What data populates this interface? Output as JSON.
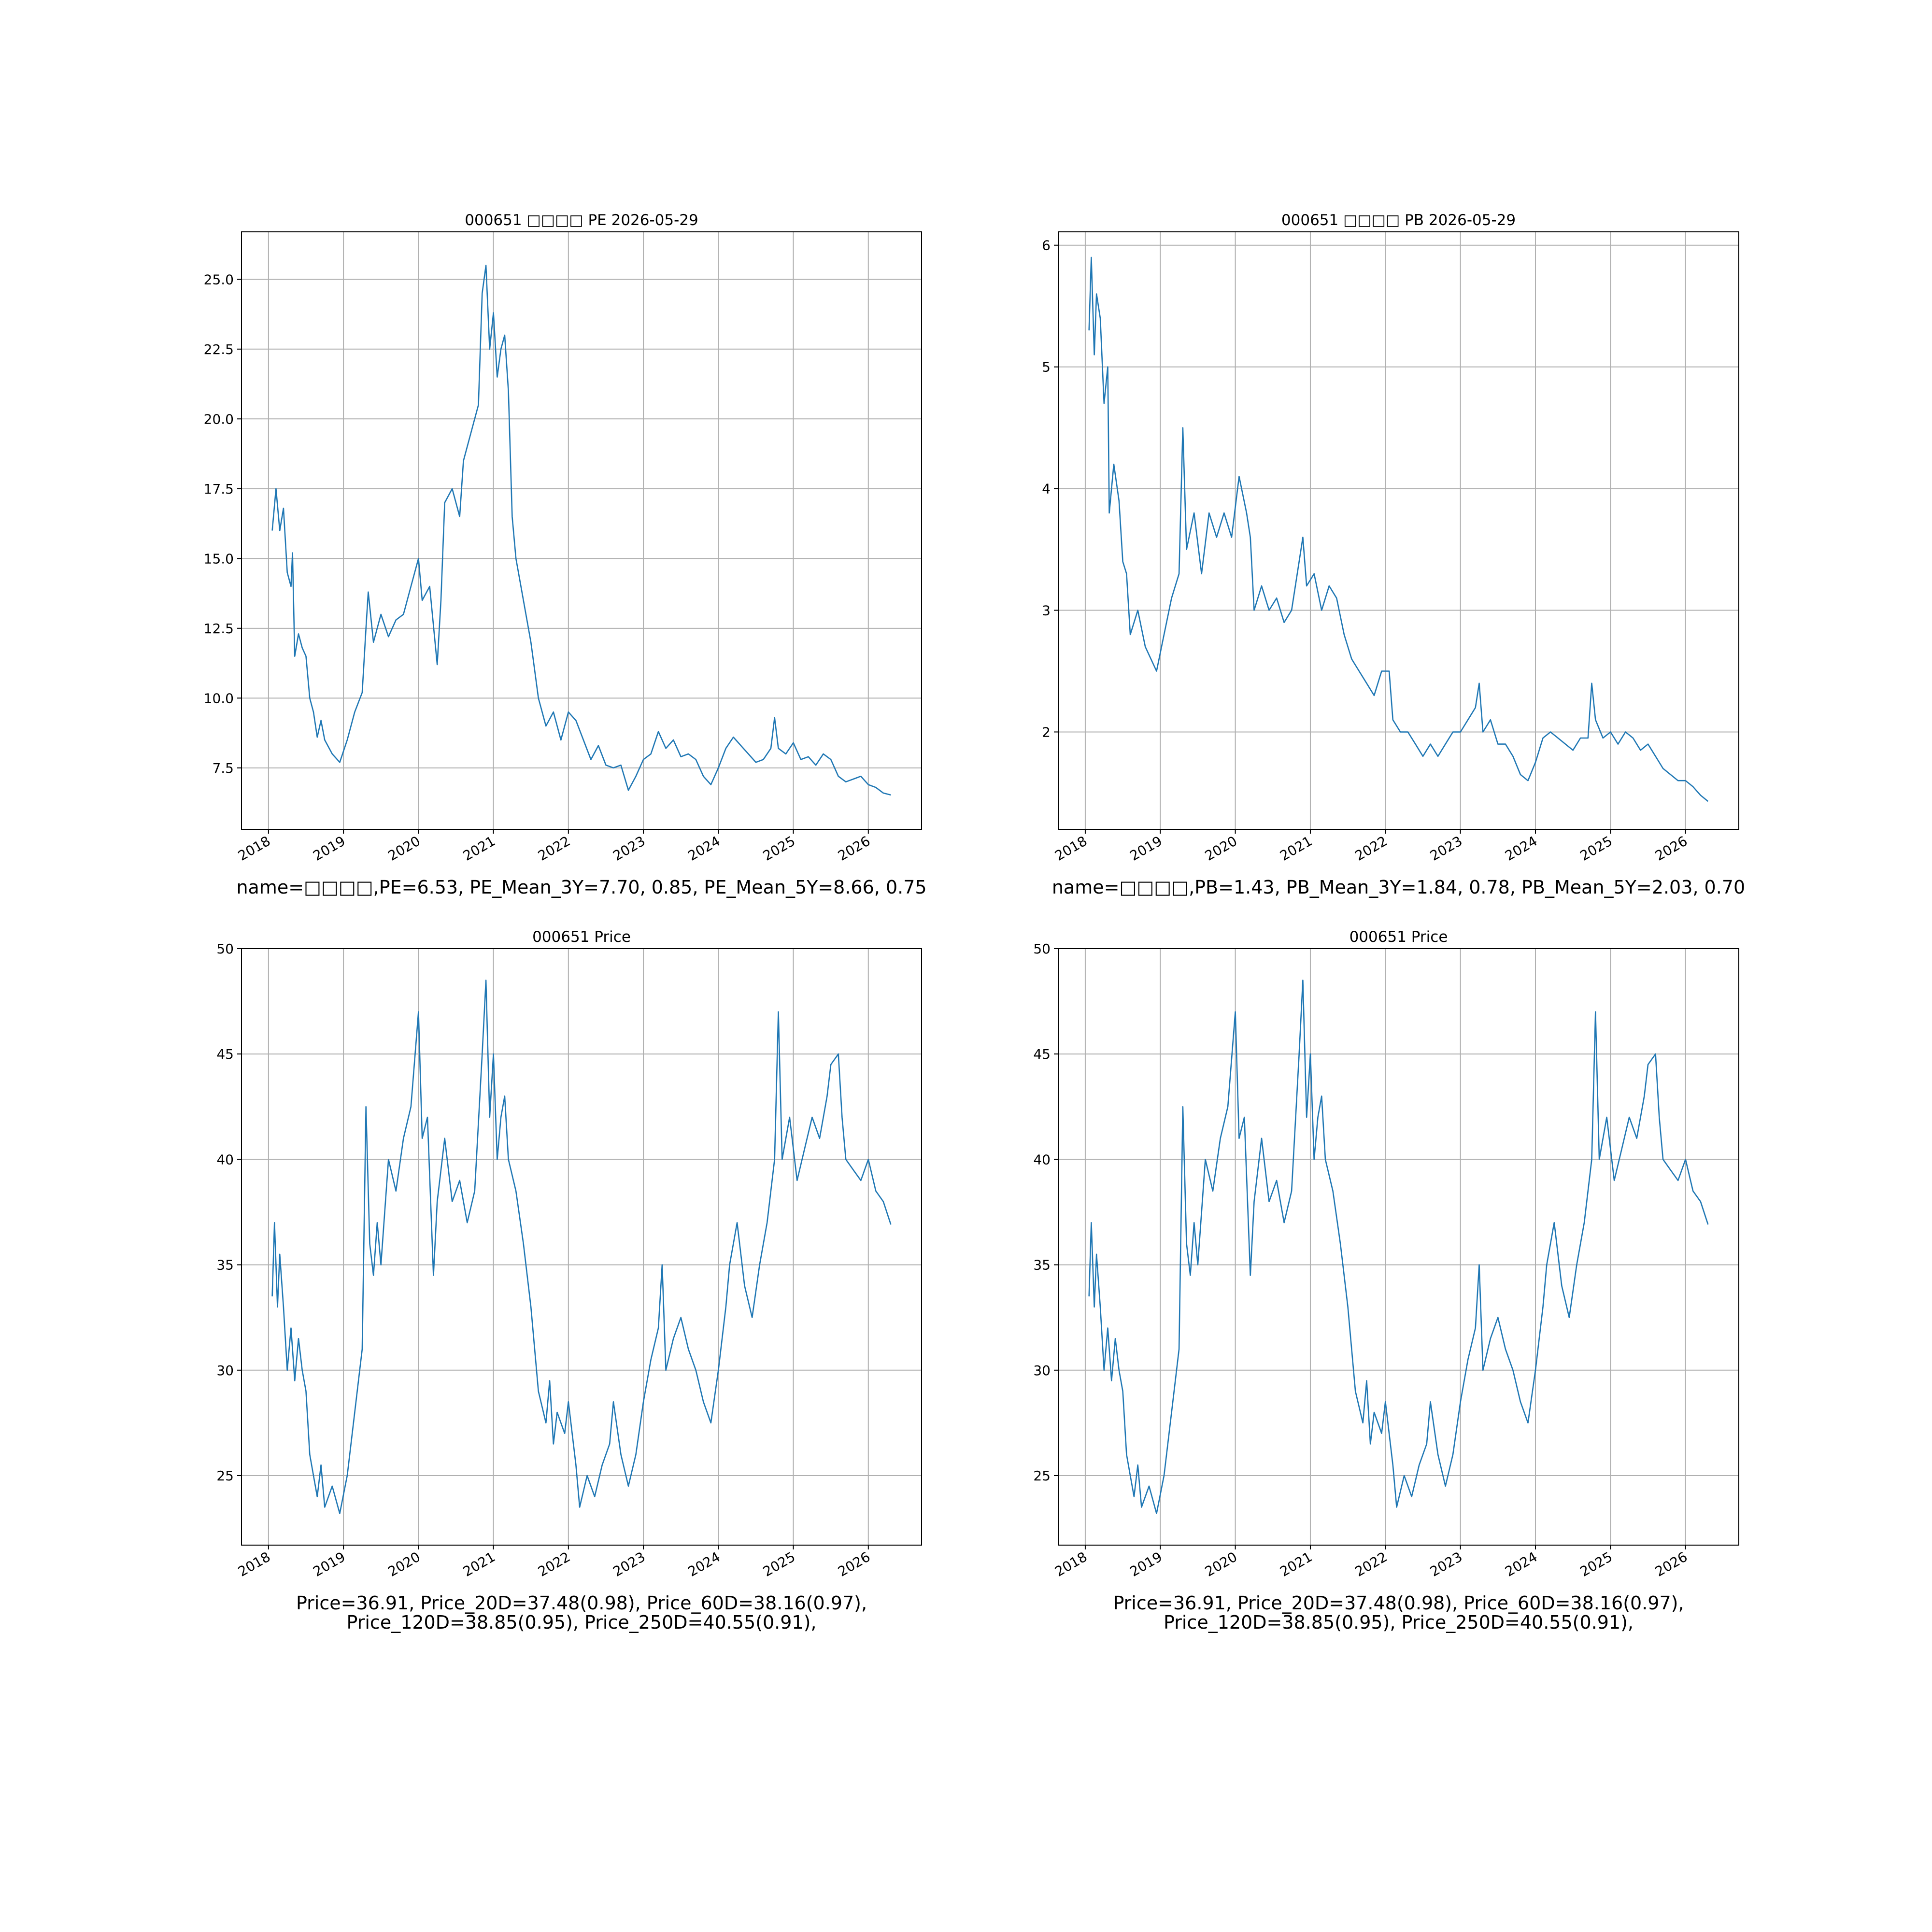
{
  "chart_data": [
    {
      "type": "line",
      "title": "000651 □□□□ PE 2026-05-29",
      "color": "#1f77b4",
      "grid": true,
      "xlim": [
        2017.64,
        2026.71
      ],
      "xticks": [
        2018,
        2019,
        2020,
        2021,
        2022,
        2023,
        2024,
        2025,
        2026
      ],
      "ylim": [
        5.3,
        26.7
      ],
      "yticks": [
        7.5,
        {
          "value": 10,
          "label": "10.0"
        },
        12.5,
        {
          "value": 15,
          "label": "15.0"
        },
        17.5,
        {
          "value": 20,
          "label": "20.0"
        },
        22.5,
        {
          "value": 25,
          "label": "25.0"
        }
      ],
      "x": [
        2018.05,
        2018.1,
        2018.15,
        2018.2,
        2018.25,
        2018.3,
        2018.32,
        2018.35,
        2018.4,
        2018.45,
        2018.5,
        2018.55,
        2018.6,
        2018.65,
        2018.7,
        2018.75,
        2018.85,
        2018.95,
        2019.05,
        2019.15,
        2019.25,
        2019.3,
        2019.33,
        2019.4,
        2019.5,
        2019.6,
        2019.7,
        2019.8,
        2019.9,
        2020.0,
        2020.05,
        2020.15,
        2020.25,
        2020.3,
        2020.35,
        2020.45,
        2020.55,
        2020.6,
        2020.7,
        2020.8,
        2020.85,
        2020.9,
        2020.95,
        2021.0,
        2021.05,
        2021.1,
        2021.15,
        2021.2,
        2021.25,
        2021.3,
        2021.4,
        2021.5,
        2021.6,
        2021.7,
        2021.8,
        2021.9,
        2022.0,
        2022.1,
        2022.2,
        2022.3,
        2022.4,
        2022.5,
        2022.6,
        2022.7,
        2022.8,
        2022.9,
        2023.0,
        2023.1,
        2023.2,
        2023.3,
        2023.4,
        2023.5,
        2023.6,
        2023.7,
        2023.8,
        2023.9,
        2024.0,
        2024.1,
        2024.2,
        2024.3,
        2024.4,
        2024.5,
        2024.6,
        2024.7,
        2024.75,
        2024.8,
        2024.9,
        2025.0,
        2025.1,
        2025.2,
        2025.3,
        2025.4,
        2025.5,
        2025.6,
        2025.7,
        2025.8,
        2025.9,
        2026.0,
        2026.1,
        2026.2,
        2026.3
      ],
      "values": [
        16,
        17.5,
        16,
        16.8,
        14.5,
        14,
        15.2,
        11.5,
        12.3,
        11.8,
        11.5,
        10,
        9.5,
        8.6,
        9.2,
        8.5,
        8,
        7.7,
        8.5,
        9.5,
        10.2,
        12.5,
        13.8,
        12,
        13,
        12.2,
        12.8,
        13,
        14,
        15,
        13.5,
        14,
        11.2,
        13.5,
        17,
        17.5,
        16.5,
        18.5,
        19.5,
        20.5,
        24.5,
        25.5,
        22.5,
        23.8,
        21.5,
        22.5,
        23,
        21,
        16.5,
        15,
        13.5,
        12,
        10,
        9,
        9.5,
        8.5,
        9.5,
        9.2,
        8.5,
        7.8,
        8.3,
        7.6,
        7.5,
        7.6,
        6.7,
        7.2,
        7.8,
        8.0,
        8.8,
        8.2,
        8.5,
        7.9,
        8.0,
        7.8,
        7.2,
        6.9,
        7.5,
        8.2,
        8.6,
        8.3,
        8.0,
        7.7,
        7.8,
        8.2,
        9.3,
        8.2,
        8.0,
        8.4,
        7.8,
        7.9,
        7.6,
        8.0,
        7.8,
        7.2,
        7.0,
        7.1,
        7.2,
        6.9,
        6.8,
        6.6,
        6.53
      ],
      "annotation": [
        "name=□□□□,PE=6.53, PE_Mean_3Y=7.70, 0.85, PE_Mean_5Y=8.66, 0.75"
      ]
    },
    {
      "type": "line",
      "title": "000651 □□□□ PB 2026-05-29",
      "color": "#1f77b4",
      "grid": true,
      "xlim": [
        2017.64,
        2026.71
      ],
      "xticks": [
        2018,
        2019,
        2020,
        2021,
        2022,
        2023,
        2024,
        2025,
        2026
      ],
      "ylim": [
        1.2,
        6.11
      ],
      "yticks": [
        2,
        3,
        4,
        5,
        6
      ],
      "x": [
        2018.05,
        2018.08,
        2018.12,
        2018.15,
        2018.2,
        2018.25,
        2018.3,
        2018.32,
        2018.38,
        2018.45,
        2018.5,
        2018.55,
        2018.6,
        2018.7,
        2018.8,
        2018.95,
        2019.05,
        2019.15,
        2019.25,
        2019.3,
        2019.35,
        2019.45,
        2019.55,
        2019.65,
        2019.75,
        2019.85,
        2019.95,
        2020.05,
        2020.15,
        2020.2,
        2020.25,
        2020.35,
        2020.45,
        2020.55,
        2020.65,
        2020.75,
        2020.85,
        2020.9,
        2020.95,
        2021.05,
        2021.15,
        2021.25,
        2021.35,
        2021.45,
        2021.55,
        2021.65,
        2021.75,
        2021.85,
        2021.95,
        2022.05,
        2022.1,
        2022.2,
        2022.3,
        2022.4,
        2022.5,
        2022.6,
        2022.7,
        2022.8,
        2022.9,
        2023.0,
        2023.1,
        2023.2,
        2023.25,
        2023.3,
        2023.4,
        2023.5,
        2023.6,
        2023.7,
        2023.8,
        2023.9,
        2024.0,
        2024.1,
        2024.2,
        2024.3,
        2024.4,
        2024.5,
        2024.6,
        2024.7,
        2024.75,
        2024.8,
        2024.9,
        2025.0,
        2025.1,
        2025.2,
        2025.3,
        2025.4,
        2025.5,
        2025.6,
        2025.7,
        2025.8,
        2025.9,
        2026.0,
        2026.1,
        2026.2,
        2026.3
      ],
      "values": [
        5.3,
        5.9,
        5.1,
        5.6,
        5.4,
        4.7,
        5.0,
        3.8,
        4.2,
        3.9,
        3.4,
        3.3,
        2.8,
        3.0,
        2.7,
        2.5,
        2.8,
        3.1,
        3.3,
        4.5,
        3.5,
        3.8,
        3.3,
        3.8,
        3.6,
        3.8,
        3.6,
        4.1,
        3.8,
        3.6,
        3.0,
        3.2,
        3.0,
        3.1,
        2.9,
        3.0,
        3.4,
        3.6,
        3.2,
        3.3,
        3.0,
        3.2,
        3.1,
        2.8,
        2.6,
        2.5,
        2.4,
        2.3,
        2.5,
        2.5,
        2.1,
        2.0,
        2.0,
        1.9,
        1.8,
        1.9,
        1.8,
        1.9,
        2.0,
        2.0,
        2.1,
        2.2,
        2.4,
        2.0,
        2.1,
        1.9,
        1.9,
        1.8,
        1.65,
        1.6,
        1.75,
        1.95,
        2.0,
        1.95,
        1.9,
        1.85,
        1.95,
        1.95,
        2.4,
        2.1,
        1.95,
        2.0,
        1.9,
        2.0,
        1.95,
        1.85,
        1.9,
        1.8,
        1.7,
        1.65,
        1.6,
        1.6,
        1.55,
        1.48,
        1.43
      ],
      "annotation": [
        "name=□□□□,PB=1.43, PB_Mean_3Y=1.84, 0.78, PB_Mean_5Y=2.03, 0.70"
      ]
    },
    {
      "type": "line",
      "title": "000651 Price",
      "color": "#1f77b4",
      "grid": true,
      "xlim": [
        2017.64,
        2026.71
      ],
      "xticks": [
        2018,
        2019,
        2020,
        2021,
        2022,
        2023,
        2024,
        2025,
        2026
      ],
      "ylim": [
        21.7,
        50
      ],
      "yticks": [
        25,
        30,
        35,
        40,
        45,
        50
      ],
      "x": [
        2018.05,
        2018.08,
        2018.12,
        2018.15,
        2018.2,
        2018.25,
        2018.3,
        2018.35,
        2018.4,
        2018.45,
        2018.5,
        2018.55,
        2018.6,
        2018.65,
        2018.7,
        2018.75,
        2018.85,
        2018.95,
        2019.05,
        2019.15,
        2019.25,
        2019.3,
        2019.35,
        2019.4,
        2019.45,
        2019.5,
        2019.6,
        2019.7,
        2019.8,
        2019.9,
        2020.0,
        2020.05,
        2020.12,
        2020.2,
        2020.25,
        2020.35,
        2020.45,
        2020.55,
        2020.65,
        2020.75,
        2020.85,
        2020.9,
        2020.95,
        2021.0,
        2021.05,
        2021.1,
        2021.15,
        2021.2,
        2021.3,
        2021.4,
        2021.5,
        2021.6,
        2021.7,
        2021.75,
        2021.8,
        2021.85,
        2021.95,
        2022.0,
        2022.1,
        2022.15,
        2022.25,
        2022.35,
        2022.45,
        2022.55,
        2022.6,
        2022.7,
        2022.8,
        2022.9,
        2023.0,
        2023.1,
        2023.2,
        2023.25,
        2023.3,
        2023.4,
        2023.5,
        2023.6,
        2023.7,
        2023.8,
        2023.9,
        2024.0,
        2024.1,
        2024.15,
        2024.25,
        2024.35,
        2024.45,
        2024.55,
        2024.65,
        2024.75,
        2024.8,
        2024.85,
        2024.95,
        2025.05,
        2025.15,
        2025.25,
        2025.35,
        2025.45,
        2025.5,
        2025.6,
        2025.65,
        2025.7,
        2025.8,
        2025.9,
        2026.0,
        2026.1,
        2026.2,
        2026.3
      ],
      "values": [
        33.5,
        37,
        33,
        35.5,
        33,
        30,
        32,
        29.5,
        31.5,
        30,
        29,
        26,
        25,
        24,
        25.5,
        23.5,
        24.5,
        23.2,
        25,
        28,
        31,
        42.5,
        36,
        34.5,
        37,
        35,
        40,
        38.5,
        41,
        42.5,
        47,
        41,
        42,
        34.5,
        38,
        41,
        38,
        39,
        37,
        38.5,
        45,
        48.5,
        42,
        45,
        40,
        42,
        43,
        40,
        38.5,
        36,
        33,
        29,
        27.5,
        29.5,
        26.5,
        28,
        27,
        28.5,
        25.5,
        23.5,
        25,
        24,
        25.5,
        26.5,
        28.5,
        26,
        24.5,
        26,
        28.5,
        30.5,
        32,
        35,
        30,
        31.5,
        32.5,
        31,
        30,
        28.5,
        27.5,
        30,
        33,
        35,
        37,
        34,
        32.5,
        35,
        37,
        40,
        47,
        40,
        42,
        39,
        40.5,
        42,
        41,
        43,
        44.5,
        45,
        42,
        40,
        39.5,
        39,
        40,
        38.5,
        38,
        36.91
      ],
      "annotation": [
        "Price=36.91, Price_20D=37.48(0.98), Price_60D=38.16(0.97),",
        "Price_120D=38.85(0.95), Price_250D=40.55(0.91),"
      ]
    },
    {
      "type": "line",
      "title": "000651 Price",
      "color": "#1f77b4",
      "grid": true,
      "xlim": [
        2017.64,
        2026.71
      ],
      "xticks": [
        2018,
        2019,
        2020,
        2021,
        2022,
        2023,
        2024,
        2025,
        2026
      ],
      "ylim": [
        21.7,
        50
      ],
      "yticks": [
        25,
        30,
        35,
        40,
        45,
        50
      ],
      "x": [
        2018.05,
        2018.08,
        2018.12,
        2018.15,
        2018.2,
        2018.25,
        2018.3,
        2018.35,
        2018.4,
        2018.45,
        2018.5,
        2018.55,
        2018.6,
        2018.65,
        2018.7,
        2018.75,
        2018.85,
        2018.95,
        2019.05,
        2019.15,
        2019.25,
        2019.3,
        2019.35,
        2019.4,
        2019.45,
        2019.5,
        2019.6,
        2019.7,
        2019.8,
        2019.9,
        2020.0,
        2020.05,
        2020.12,
        2020.2,
        2020.25,
        2020.35,
        2020.45,
        2020.55,
        2020.65,
        2020.75,
        2020.85,
        2020.9,
        2020.95,
        2021.0,
        2021.05,
        2021.1,
        2021.15,
        2021.2,
        2021.3,
        2021.4,
        2021.5,
        2021.6,
        2021.7,
        2021.75,
        2021.8,
        2021.85,
        2021.95,
        2022.0,
        2022.1,
        2022.15,
        2022.25,
        2022.35,
        2022.45,
        2022.55,
        2022.6,
        2022.7,
        2022.8,
        2022.9,
        2023.0,
        2023.1,
        2023.2,
        2023.25,
        2023.3,
        2023.4,
        2023.5,
        2023.6,
        2023.7,
        2023.8,
        2023.9,
        2024.0,
        2024.1,
        2024.15,
        2024.25,
        2024.35,
        2024.45,
        2024.55,
        2024.65,
        2024.75,
        2024.8,
        2024.85,
        2024.95,
        2025.05,
        2025.15,
        2025.25,
        2025.35,
        2025.45,
        2025.5,
        2025.6,
        2025.65,
        2025.7,
        2025.8,
        2025.9,
        2026.0,
        2026.1,
        2026.2,
        2026.3
      ],
      "values": [
        33.5,
        37,
        33,
        35.5,
        33,
        30,
        32,
        29.5,
        31.5,
        30,
        29,
        26,
        25,
        24,
        25.5,
        23.5,
        24.5,
        23.2,
        25,
        28,
        31,
        42.5,
        36,
        34.5,
        37,
        35,
        40,
        38.5,
        41,
        42.5,
        47,
        41,
        42,
        34.5,
        38,
        41,
        38,
        39,
        37,
        38.5,
        45,
        48.5,
        42,
        45,
        40,
        42,
        43,
        40,
        38.5,
        36,
        33,
        29,
        27.5,
        29.5,
        26.5,
        28,
        27,
        28.5,
        25.5,
        23.5,
        25,
        24,
        25.5,
        26.5,
        28.5,
        26,
        24.5,
        26,
        28.5,
        30.5,
        32,
        35,
        30,
        31.5,
        32.5,
        31,
        30,
        28.5,
        27.5,
        30,
        33,
        35,
        37,
        34,
        32.5,
        35,
        37,
        40,
        47,
        40,
        42,
        39,
        40.5,
        42,
        41,
        43,
        44.5,
        45,
        42,
        40,
        39.5,
        39,
        40,
        38.5,
        38,
        36.91
      ],
      "annotation": [
        "Price=36.91, Price_20D=37.48(0.98), Price_60D=38.16(0.97),",
        "Price_120D=38.85(0.95), Price_250D=40.55(0.91),"
      ]
    }
  ]
}
